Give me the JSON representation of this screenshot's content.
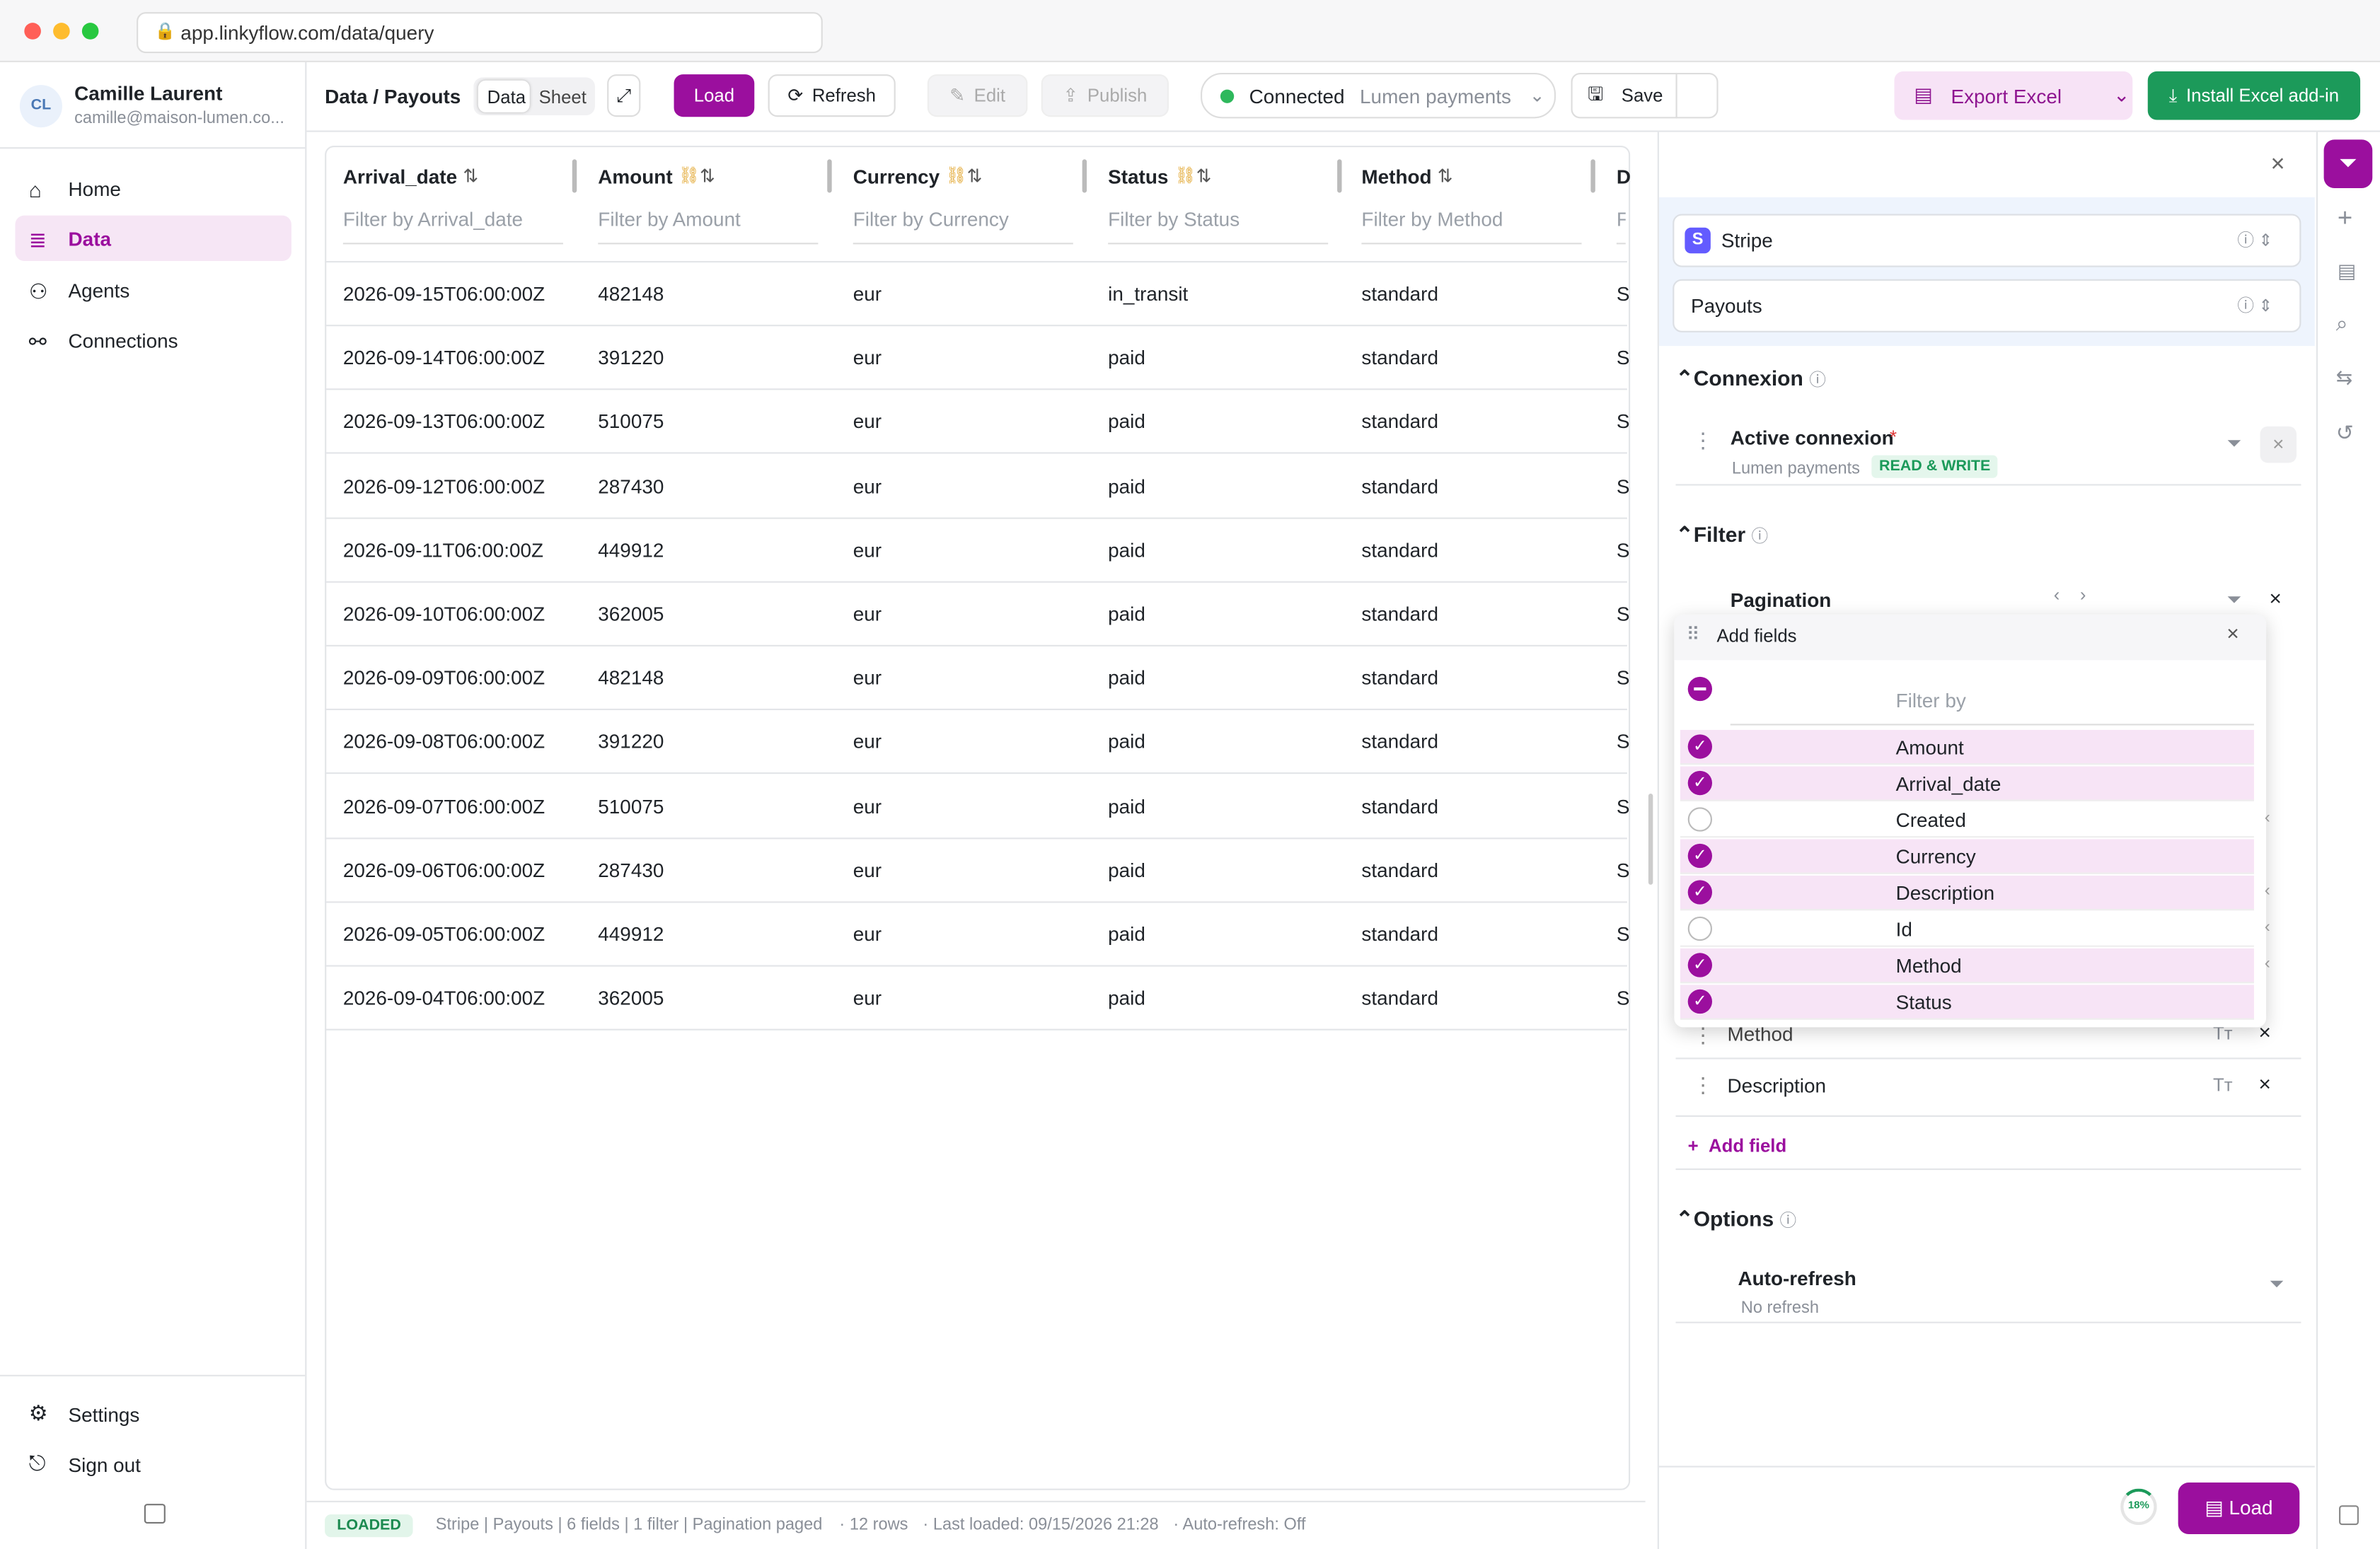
{
  "browser": {
    "url": "app.linkyflow.com/data/query"
  },
  "user": {
    "initials": "CL",
    "name": "Camille Laurent",
    "email": "camille@maison-lumen.co..."
  },
  "nav": {
    "items": [
      "Home",
      "Data",
      "Agents",
      "Connections"
    ],
    "active": 1,
    "bottom": [
      "Settings",
      "Sign out"
    ]
  },
  "toolbar": {
    "breadcrumb": "Data / Payouts",
    "tabs": [
      "Data",
      "Sheet"
    ],
    "load": "Load",
    "refresh": "Refresh",
    "edit": "Edit",
    "publish": "Publish",
    "status": "Connected",
    "connection": "Lumen payments",
    "save": "Save",
    "export": "Export Excel",
    "install": "Install Excel add-in"
  },
  "table": {
    "columns": [
      "Arrival_date",
      "Amount",
      "Currency",
      "Status",
      "Method",
      "D"
    ],
    "filters": [
      "Filter by Arrival_date",
      "Filter by Amount",
      "Filter by Currency",
      "Filter by Status",
      "Filter by Method",
      "F"
    ],
    "rows": [
      [
        "2026-09-15T06:00:00Z",
        "482148",
        "eur",
        "in_transit",
        "standard",
        "S"
      ],
      [
        "2026-09-14T06:00:00Z",
        "391220",
        "eur",
        "paid",
        "standard",
        "S"
      ],
      [
        "2026-09-13T06:00:00Z",
        "510075",
        "eur",
        "paid",
        "standard",
        "S"
      ],
      [
        "2026-09-12T06:00:00Z",
        "287430",
        "eur",
        "paid",
        "standard",
        "S"
      ],
      [
        "2026-09-11T06:00:00Z",
        "449912",
        "eur",
        "paid",
        "standard",
        "S"
      ],
      [
        "2026-09-10T06:00:00Z",
        "362005",
        "eur",
        "paid",
        "standard",
        "S"
      ],
      [
        "2026-09-09T06:00:00Z",
        "482148",
        "eur",
        "paid",
        "standard",
        "S"
      ],
      [
        "2026-09-08T06:00:00Z",
        "391220",
        "eur",
        "paid",
        "standard",
        "S"
      ],
      [
        "2026-09-07T06:00:00Z",
        "510075",
        "eur",
        "paid",
        "standard",
        "S"
      ],
      [
        "2026-09-06T06:00:00Z",
        "287430",
        "eur",
        "paid",
        "standard",
        "S"
      ],
      [
        "2026-09-05T06:00:00Z",
        "449912",
        "eur",
        "paid",
        "standard",
        "S"
      ],
      [
        "2026-09-04T06:00:00Z",
        "362005",
        "eur",
        "paid",
        "standard",
        "S"
      ]
    ]
  },
  "status_bar": {
    "badge": "LOADED",
    "summary": "Stripe | Payouts | 6 fields | 1 filter | Pagination paged",
    "rows": "· 12 rows",
    "last_loaded": "· Last loaded: 09/15/2026 21:28",
    "auto_refresh": "· Auto-refresh: Off"
  },
  "panel": {
    "source": "Stripe",
    "object": "Payouts",
    "connexion": {
      "title": "Connexion",
      "label": "Active connexion",
      "required": "*",
      "name": "Lumen payments",
      "badge": "READ & WRITE"
    },
    "filter": {
      "title": "Filter",
      "pagination": "Pagination"
    },
    "add_fields": {
      "title": "Add fields",
      "placeholder": "Filter by",
      "items": [
        {
          "name": "Amount",
          "checked": true
        },
        {
          "name": "Arrival_date",
          "checked": true
        },
        {
          "name": "Created",
          "checked": false
        },
        {
          "name": "Currency",
          "checked": true
        },
        {
          "name": "Description",
          "checked": true
        },
        {
          "name": "Id",
          "checked": false
        },
        {
          "name": "Method",
          "checked": true
        },
        {
          "name": "Status",
          "checked": true
        }
      ]
    },
    "fields_below": [
      "Method",
      "Description"
    ],
    "add_field": "Add field",
    "options": {
      "title": "Options",
      "auto_refresh": "Auto-refresh",
      "no_refresh": "No refresh"
    },
    "progress": "18%",
    "load": "Load"
  }
}
